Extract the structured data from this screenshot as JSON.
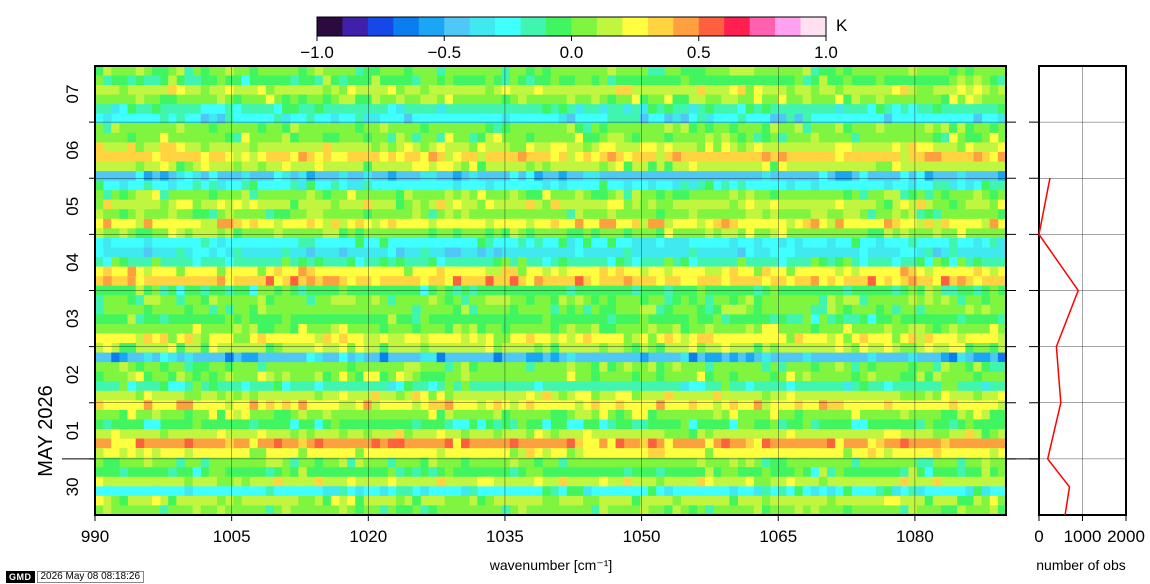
{
  "chart_data": [
    {
      "type": "heatmap",
      "xlabel": "wavenumber [cm⁻¹]",
      "ylabel": "MAY 2026",
      "xlim": [
        990,
        1090
      ],
      "x_ticks": [
        "990",
        "1005",
        "1020",
        "1035",
        "1050",
        "1065",
        "1080"
      ],
      "y_ticks": [
        "30",
        "01",
        "02",
        "03",
        "04",
        "05",
        "06",
        "07"
      ],
      "ylim": [
        "30 12:00",
        "07 12:00"
      ],
      "colorbar": {
        "unit": "K",
        "range": [
          -1.0,
          1.0
        ],
        "tick_labels": [
          "−1.0",
          "−0.5",
          "0.0",
          "0.5",
          "1.0"
        ],
        "colors": [
          "#2b0a3d",
          "#4020a8",
          "#1648e8",
          "#0a7ef0",
          "#1aa6f5",
          "#50c8f5",
          "#40e8f0",
          "#40ffff",
          "#40f5b0",
          "#40f560",
          "#80f540",
          "#c0f540",
          "#ffff40",
          "#ffd440",
          "#ffa040",
          "#ff6040",
          "#ff2050",
          "#ff60b0",
          "#ffa0f0",
          "#ffe0f0"
        ]
      },
      "description_rows_top_to_bottom": [
        0.02,
        -0.05,
        0.18,
        0.08,
        -0.18,
        -0.3,
        0.02,
        0.05,
        0.18,
        0.32,
        0.12,
        -0.42,
        -0.22,
        0.05,
        0.15,
        0.02,
        0.28,
        0.08,
        -0.22,
        -0.32,
        -0.12,
        0.25,
        0.38,
        -0.05,
        0.02,
        0.02,
        -0.05,
        0.08,
        0.22,
        0.1,
        -0.45,
        0.02,
        0.08,
        -0.15,
        0.18,
        0.28,
        0.08,
        -0.1,
        0.15,
        0.42,
        0.22,
        0.02,
        -0.05,
        0.18,
        -0.22,
        0.1,
        0.02
      ]
    },
    {
      "type": "line",
      "xlabel": "number of obs",
      "xlim": [
        0,
        2000
      ],
      "x_ticks": [
        "0",
        "1000",
        "2000"
      ],
      "series": [
        {
          "name": "",
          "color": "#ff0000",
          "points": [
            [
              600,
              "30 12:00"
            ],
            [
              700,
              "01 00:00"
            ],
            [
              200,
              "01 12:00"
            ],
            [
              500,
              "02 12:00"
            ],
            [
              400,
              "03 12:00"
            ],
            [
              900,
              "04 12:00"
            ],
            [
              0,
              "05 12:00"
            ],
            [
              250,
              "06 12:00"
            ]
          ]
        }
      ]
    }
  ],
  "footer": {
    "logo": "GMD",
    "timestamp": "2026 May 08 08:18:26"
  }
}
